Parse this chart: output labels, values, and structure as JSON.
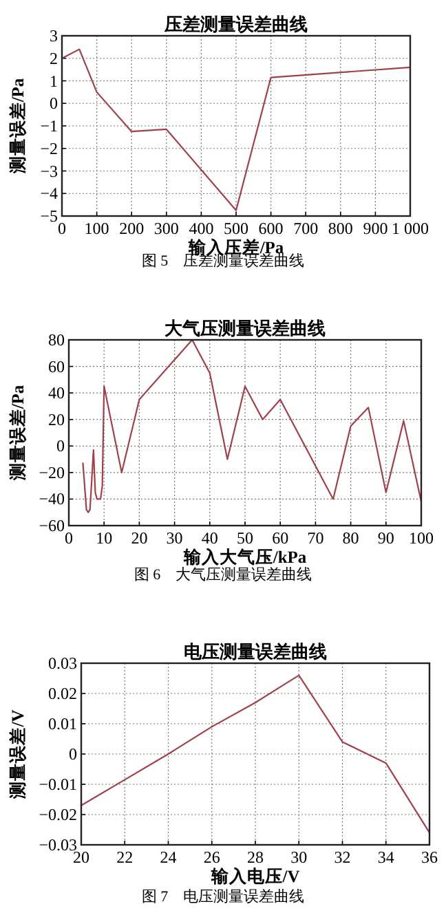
{
  "chart_data": [
    {
      "type": "line",
      "title": "压差测量误差曲线",
      "xlabel": "输入压差/Pa",
      "ylabel": "测量误差/Pa",
      "color": "#a0404a",
      "grid": true,
      "x": [
        0,
        50,
        100,
        200,
        300,
        500,
        600,
        1000
      ],
      "values": [
        2,
        2.4,
        0.5,
        -1.25,
        -1.15,
        -4.75,
        1.15,
        1.6
      ],
      "xlim": [
        0,
        1000
      ],
      "ylim": [
        -5,
        3
      ],
      "xticks": [
        0,
        100,
        200,
        300,
        400,
        500,
        600,
        700,
        800,
        900,
        {
          "value": 1000,
          "label": "1 000"
        }
      ],
      "yticks": [
        -5,
        -4,
        -3,
        -2,
        -1,
        0,
        1,
        2,
        3
      ],
      "annotations": [
        "图 5　压差测量误差曲线"
      ]
    },
    {
      "type": "line",
      "title": "大气压测量误差曲线",
      "xlabel": "输入大气压/kPa",
      "ylabel": "测量误差/Pa",
      "color": "#a0404a",
      "grid": true,
      "x": [
        4,
        5,
        5.5,
        6,
        7,
        7.5,
        8,
        9,
        9.5,
        10,
        15,
        20,
        35,
        40,
        45,
        50,
        55,
        60,
        75,
        80,
        85,
        90,
        95,
        100
      ],
      "values": [
        -13,
        -48,
        -50,
        -48,
        -3,
        -35,
        -40,
        -40,
        -30,
        45,
        -20,
        35,
        80,
        55,
        -10,
        45,
        20,
        35,
        -40,
        15,
        29,
        -35,
        19,
        -42
      ],
      "xlim": [
        0,
        100
      ],
      "ylim": [
        -60,
        80
      ],
      "xticks": [
        0,
        10,
        20,
        30,
        40,
        50,
        60,
        70,
        80,
        90,
        100
      ],
      "yticks": [
        -60,
        -40,
        -20,
        0,
        20,
        40,
        60,
        80
      ],
      "annotations": [
        "图 6　大气压测量误差曲线"
      ]
    },
    {
      "type": "line",
      "title": "电压测量误差曲线",
      "xlabel": "输入电压/V",
      "ylabel": "测量误差/V",
      "color": "#a0404a",
      "grid": true,
      "x": [
        20,
        22,
        24,
        26,
        28,
        30,
        32,
        34,
        36
      ],
      "values": [
        -0.017,
        -0.0085,
        0,
        0.009,
        0.017,
        0.026,
        0.004,
        -0.003,
        -0.026
      ],
      "xlim": [
        20,
        36
      ],
      "ylim": [
        -0.03,
        0.03
      ],
      "xticks": [
        20,
        22,
        24,
        26,
        28,
        30,
        32,
        34,
        36
      ],
      "yticks": [
        -0.03,
        -0.02,
        -0.01,
        0,
        0.01,
        0.02,
        0.03
      ],
      "annotations": [
        "图 7　电压测量误差曲线"
      ]
    }
  ]
}
